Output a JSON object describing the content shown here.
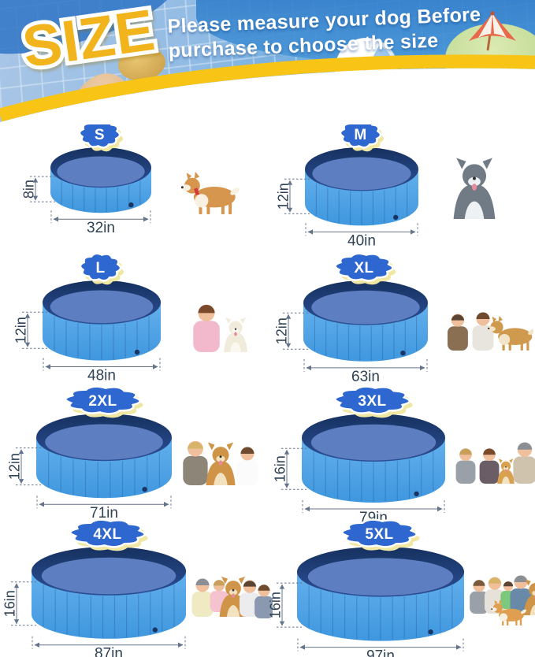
{
  "header": {
    "badge": "SIZE",
    "title_line1": "Please measure your dog Before",
    "title_line2": "purchase to choose the size"
  },
  "colors": {
    "swoosh_yellow": "#f8c416",
    "size_word_gold": "#f2b41c",
    "badge_blue": "#2d67cf",
    "badge_shadow": "#efe7a2",
    "pool_wall_blue": "#4aa2e6",
    "pool_rim_navy": "#1f3d7d",
    "pool_floor_blue": "#5d7fc1",
    "dimension_text": "#2f4254"
  },
  "sizes": [
    {
      "label": "S",
      "height_label": "8in",
      "width_label": "32in",
      "photo": "corgi dog standing"
    },
    {
      "label": "M",
      "height_label": "12in",
      "width_label": "40in",
      "photo": "husky dog sitting"
    },
    {
      "label": "L",
      "height_label": "12in",
      "width_label": "48in",
      "photo": "girl hugging white puppy"
    },
    {
      "label": "XL",
      "height_label": "12in",
      "width_label": "63in",
      "photo": "toddler and girl with golden retriever"
    },
    {
      "label": "2XL",
      "height_label": "12in",
      "width_label": "71in",
      "photo": "woman and boy with golden retriever"
    },
    {
      "label": "3XL",
      "height_label": "16in",
      "width_label": "79in",
      "photo": "family lying with golden retriever puppy"
    },
    {
      "label": "4XL",
      "height_label": "16in",
      "width_label": "87in",
      "photo": "family of four with golden retriever"
    },
    {
      "label": "5XL",
      "height_label": "16in",
      "width_label": "97in",
      "photo": "family of four with golden retriever and shiba dog"
    }
  ]
}
